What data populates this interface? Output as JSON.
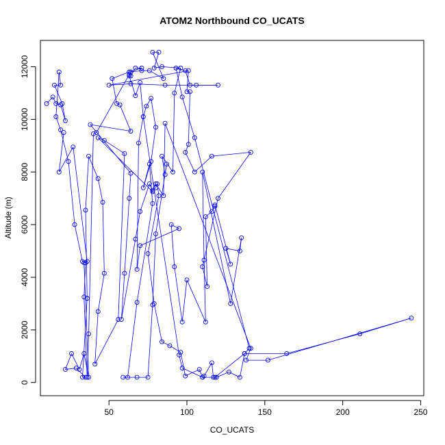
{
  "chart_data": {
    "type": "line",
    "title": "ATOM2 Northbound CO_UCATS",
    "xlabel": "CO_UCATS",
    "ylabel": "Altitude (m)",
    "xlim": [
      6,
      252
    ],
    "ylim": [
      -500,
      13000
    ],
    "xticks": [
      50,
      100,
      150,
      200,
      250
    ],
    "yticks": [
      0,
      2000,
      4000,
      6000,
      8000,
      10000,
      12000
    ],
    "series_color": "#0000ff",
    "marker": "open-circle",
    "grid": false,
    "points": [
      [
        10,
        10600
      ],
      [
        14,
        10850
      ],
      [
        16,
        10600
      ],
      [
        19,
        10550
      ],
      [
        22,
        9950
      ],
      [
        20,
        10600
      ],
      [
        15,
        11300
      ],
      [
        19,
        11300
      ],
      [
        18,
        11800
      ],
      [
        16,
        10100
      ],
      [
        19,
        9600
      ],
      [
        24,
        8400
      ],
      [
        28,
        6000
      ],
      [
        33,
        4600
      ],
      [
        35,
        4550
      ],
      [
        34,
        3250
      ],
      [
        36,
        200
      ],
      [
        37,
        1850
      ],
      [
        40,
        9450
      ],
      [
        42,
        9500
      ],
      [
        63,
        11700
      ],
      [
        64,
        11650
      ],
      [
        67,
        11950
      ],
      [
        71,
        11950
      ],
      [
        63,
        11800
      ],
      [
        52,
        11550
      ],
      [
        55,
        10600
      ],
      [
        57,
        10550
      ],
      [
        64,
        9550
      ],
      [
        38,
        9800
      ],
      [
        64,
        7950
      ],
      [
        63,
        7000
      ],
      [
        60,
        4150
      ],
      [
        58,
        2400
      ],
      [
        67,
        5450
      ],
      [
        70,
        6500
      ],
      [
        76,
        7550
      ],
      [
        78,
        7300
      ],
      [
        80,
        7400
      ],
      [
        81,
        7550
      ],
      [
        82,
        7100
      ],
      [
        75,
        4900
      ],
      [
        79,
        3000
      ],
      [
        84,
        1550
      ],
      [
        89,
        1400
      ],
      [
        96,
        1150
      ],
      [
        99,
        250
      ],
      [
        108,
        500
      ],
      [
        110,
        200
      ],
      [
        111,
        250
      ],
      [
        116,
        750
      ],
      [
        117,
        200
      ],
      [
        118,
        200
      ],
      [
        137,
        1100
      ],
      [
        140,
        1300
      ],
      [
        105,
        9300
      ],
      [
        97,
        10850
      ],
      [
        93,
        11950
      ],
      [
        99,
        11850
      ],
      [
        102,
        11300
      ],
      [
        120,
        11300
      ],
      [
        106,
        11300
      ],
      [
        86,
        11300
      ],
      [
        64,
        11350
      ],
      [
        50,
        11300
      ],
      [
        101,
        11850
      ],
      [
        100,
        11050
      ],
      [
        102,
        11050
      ],
      [
        101,
        9050
      ],
      [
        99,
        8750
      ],
      [
        105,
        8000
      ],
      [
        116,
        8600
      ],
      [
        141,
        8750
      ],
      [
        120,
        7000
      ],
      [
        110,
        4400
      ],
      [
        113,
        3650
      ],
      [
        112,
        6300
      ],
      [
        116,
        6500
      ],
      [
        118,
        6700
      ],
      [
        118,
        6750
      ],
      [
        128,
        4500
      ],
      [
        125,
        5100
      ],
      [
        134,
        5000
      ],
      [
        135,
        5500
      ],
      [
        128,
        3000
      ],
      [
        110,
        8000
      ],
      [
        111,
        4650
      ],
      [
        112,
        2300
      ],
      [
        100,
        3900
      ],
      [
        97,
        2300
      ],
      [
        92,
        4400
      ],
      [
        90,
        6000
      ],
      [
        95,
        5850
      ],
      [
        70,
        5200
      ],
      [
        68,
        4300
      ],
      [
        69,
        9100
      ],
      [
        72,
        10100
      ],
      [
        74,
        10500
      ],
      [
        77,
        10800
      ],
      [
        80,
        9700
      ],
      [
        77,
        8400
      ],
      [
        72,
        7400
      ],
      [
        76,
        8300
      ],
      [
        78,
        6800
      ],
      [
        68,
        3050
      ],
      [
        62,
        200
      ],
      [
        59,
        200
      ],
      [
        68,
        200
      ],
      [
        75,
        200
      ],
      [
        78,
        2950
      ],
      [
        80,
        5650
      ],
      [
        87,
        8300
      ],
      [
        86,
        7900
      ],
      [
        84,
        8600
      ],
      [
        91,
        8000
      ],
      [
        92,
        11000
      ],
      [
        96,
        11950
      ],
      [
        84,
        12000
      ],
      [
        79,
        11950
      ],
      [
        82,
        12550
      ],
      [
        78,
        12550
      ],
      [
        85,
        11550
      ],
      [
        76,
        11850
      ],
      [
        71,
        11850
      ],
      [
        64,
        11800
      ],
      [
        63,
        11650
      ],
      [
        67,
        10900
      ],
      [
        70,
        11400
      ],
      [
        72,
        10100
      ],
      [
        95,
        1050
      ],
      [
        97,
        550
      ],
      [
        110,
        200
      ],
      [
        119,
        200
      ],
      [
        127,
        400
      ],
      [
        134,
        200
      ],
      [
        137,
        1100
      ],
      [
        164,
        1100
      ],
      [
        211,
        1850
      ],
      [
        244,
        2450
      ],
      [
        152,
        850
      ],
      [
        138,
        850
      ],
      [
        141,
        1300
      ],
      [
        86,
        9850
      ],
      [
        85,
        7100
      ],
      [
        80,
        7550
      ],
      [
        78,
        7250
      ],
      [
        43,
        9300
      ],
      [
        47,
        9200
      ],
      [
        60,
        8700
      ],
      [
        56,
        2400
      ],
      [
        41,
        700
      ],
      [
        43,
        2700
      ],
      [
        47,
        4150
      ],
      [
        46,
        6850
      ],
      [
        43,
        7750
      ],
      [
        37,
        8600
      ],
      [
        35,
        6550
      ],
      [
        36,
        3200
      ],
      [
        33,
        200
      ],
      [
        35,
        200
      ],
      [
        29,
        550
      ],
      [
        22,
        500
      ],
      [
        26,
        1100
      ],
      [
        31,
        500
      ],
      [
        34,
        1100
      ],
      [
        37,
        200
      ],
      [
        34,
        4550
      ],
      [
        36,
        4600
      ],
      [
        27,
        8950
      ],
      [
        18,
        8000
      ],
      [
        21,
        9500
      ]
    ]
  }
}
